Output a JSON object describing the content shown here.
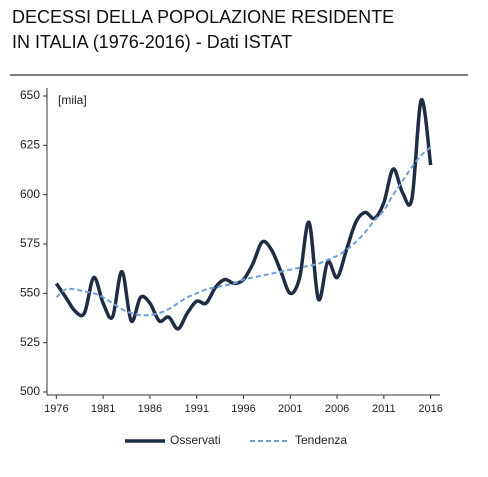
{
  "chart_data": {
    "type": "line",
    "title_lines": [
      "DECESSI DELLA POPOLAZIONE RESIDENTE",
      "IN ITALIA (1976-2016) - Dati ISTAT"
    ],
    "y_unit_label": "[mila]",
    "x": [
      1976,
      1977,
      1978,
      1979,
      1980,
      1981,
      1982,
      1983,
      1984,
      1985,
      1986,
      1987,
      1988,
      1989,
      1990,
      1991,
      1992,
      1993,
      1994,
      1995,
      1996,
      1997,
      1998,
      1999,
      2000,
      2001,
      2002,
      2003,
      2004,
      2005,
      2006,
      2007,
      2008,
      2009,
      2010,
      2011,
      2012,
      2013,
      2014,
      2015,
      2016
    ],
    "series": [
      {
        "name": "Osservati",
        "color": "#1f2d44",
        "dash": false,
        "values": [
          555,
          548,
          541,
          540,
          558,
          545,
          538,
          561,
          536,
          548,
          545,
          536,
          538,
          532,
          540,
          546,
          545,
          553,
          557,
          555,
          557,
          565,
          576,
          572,
          561,
          550,
          558,
          586,
          547,
          566,
          558,
          572,
          586,
          591,
          588,
          596,
          613,
          601,
          598,
          648,
          615
        ]
      },
      {
        "name": "Tendenza",
        "color": "#6f9fd8",
        "dash": true,
        "values": [
          548,
          552,
          552,
          551,
          550,
          548,
          545,
          542,
          540,
          539,
          539,
          540,
          542,
          545,
          548,
          550,
          552,
          553,
          554,
          555,
          557,
          558,
          559,
          560,
          561,
          562,
          563,
          564,
          565,
          567,
          569,
          572,
          576,
          581,
          587,
          592,
          600,
          607,
          614,
          620,
          624
        ]
      }
    ],
    "xlim": [
      1975,
      2017
    ],
    "xticks": [
      1976,
      1981,
      1986,
      1991,
      1996,
      2001,
      2006,
      2011,
      2016
    ],
    "ylim": [
      500,
      650
    ],
    "yticks": [
      500,
      525,
      550,
      575,
      600,
      625,
      650
    ],
    "grid": false,
    "legend": "bottom"
  }
}
